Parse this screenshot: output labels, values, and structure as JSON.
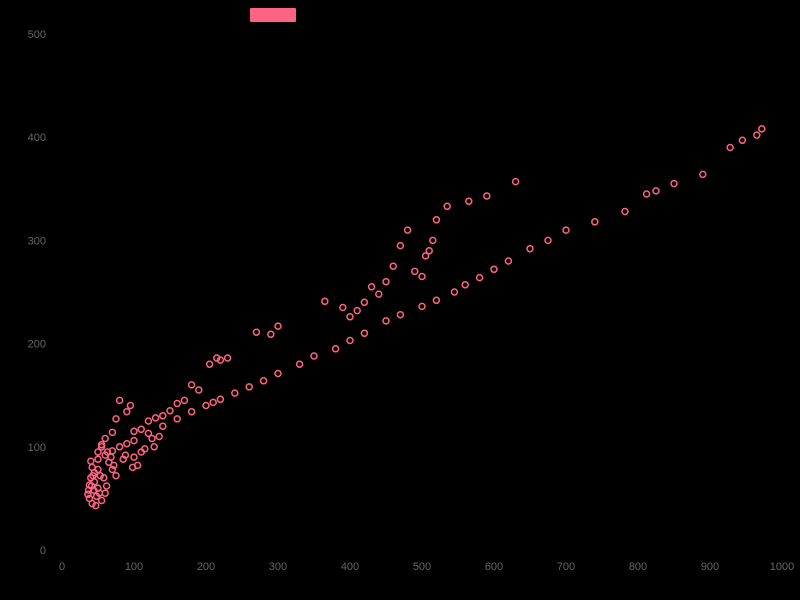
{
  "chart_data": {
    "type": "scatter",
    "title": "",
    "xlabel": "",
    "ylabel": "",
    "xlim": [
      0,
      1000
    ],
    "ylim": [
      0,
      500
    ],
    "x_ticks": [
      0,
      100,
      200,
      300,
      400,
      500,
      600,
      700,
      800,
      900,
      1000
    ],
    "y_ticks": [
      0,
      100,
      200,
      300,
      400,
      500
    ],
    "grid": false,
    "legend_position": "top-center",
    "series": [
      {
        "name": "",
        "color": "#ff6384",
        "points": [
          [
            972,
            408
          ],
          [
            965,
            402
          ],
          [
            945,
            397
          ],
          [
            928,
            390
          ],
          [
            890,
            364
          ],
          [
            850,
            355
          ],
          [
            825,
            348
          ],
          [
            812,
            345
          ],
          [
            782,
            328
          ],
          [
            740,
            318
          ],
          [
            700,
            310
          ],
          [
            675,
            300
          ],
          [
            650,
            292
          ],
          [
            620,
            280
          ],
          [
            600,
            272
          ],
          [
            580,
            264
          ],
          [
            560,
            257
          ],
          [
            545,
            250
          ],
          [
            520,
            242
          ],
          [
            500,
            236
          ],
          [
            470,
            228
          ],
          [
            450,
            222
          ],
          [
            420,
            210
          ],
          [
            400,
            203
          ],
          [
            380,
            195
          ],
          [
            350,
            188
          ],
          [
            330,
            180
          ],
          [
            300,
            171
          ],
          [
            280,
            164
          ],
          [
            260,
            158
          ],
          [
            240,
            152
          ],
          [
            220,
            146
          ],
          [
            210,
            143
          ],
          [
            200,
            140
          ],
          [
            180,
            134
          ],
          [
            160,
            127
          ],
          [
            140,
            120
          ],
          [
            120,
            113
          ],
          [
            100,
            106
          ],
          [
            90,
            103
          ],
          [
            80,
            100
          ],
          [
            70,
            96
          ],
          [
            60,
            92
          ],
          [
            50,
            88
          ],
          [
            40,
            86
          ],
          [
            630,
            357
          ],
          [
            590,
            343
          ],
          [
            565,
            338
          ],
          [
            535,
            333
          ],
          [
            520,
            320
          ],
          [
            515,
            300
          ],
          [
            510,
            290
          ],
          [
            505,
            285
          ],
          [
            500,
            265
          ],
          [
            490,
            270
          ],
          [
            480,
            310
          ],
          [
            470,
            295
          ],
          [
            460,
            275
          ],
          [
            450,
            260
          ],
          [
            440,
            248
          ],
          [
            430,
            255
          ],
          [
            420,
            240
          ],
          [
            410,
            232
          ],
          [
            400,
            226
          ],
          [
            390,
            235
          ],
          [
            365,
            241
          ],
          [
            300,
            217
          ],
          [
            290,
            209
          ],
          [
            270,
            211
          ],
          [
            230,
            186
          ],
          [
            220,
            184
          ],
          [
            215,
            186
          ],
          [
            205,
            180
          ],
          [
            190,
            155
          ],
          [
            180,
            160
          ],
          [
            170,
            145
          ],
          [
            160,
            142
          ],
          [
            150,
            135
          ],
          [
            140,
            130
          ],
          [
            130,
            128
          ],
          [
            120,
            125
          ],
          [
            110,
            117
          ],
          [
            100,
            115
          ],
          [
            95,
            140
          ],
          [
            90,
            134
          ],
          [
            80,
            145
          ],
          [
            75,
            127
          ],
          [
            70,
            114
          ],
          [
            60,
            108
          ],
          [
            55,
            100
          ],
          [
            50,
            95
          ],
          [
            45,
            75
          ],
          [
            40,
            70
          ],
          [
            38,
            63
          ],
          [
            37,
            58
          ],
          [
            36,
            54
          ],
          [
            38,
            50
          ],
          [
            42,
            45
          ],
          [
            47,
            43
          ],
          [
            55,
            48
          ],
          [
            60,
            55
          ],
          [
            62,
            62
          ],
          [
            58,
            70
          ],
          [
            50,
            78
          ],
          [
            42,
            80
          ],
          [
            45,
            66
          ],
          [
            50,
            60
          ],
          [
            52,
            55
          ],
          [
            48,
            52
          ],
          [
            44,
            58
          ],
          [
            41,
            62
          ],
          [
            43,
            72
          ],
          [
            53,
            72
          ],
          [
            65,
            85
          ],
          [
            70,
            78
          ],
          [
            75,
            72
          ],
          [
            72,
            82
          ],
          [
            68,
            90
          ],
          [
            63,
            95
          ],
          [
            55,
            102
          ],
          [
            85,
            88
          ],
          [
            88,
            92
          ],
          [
            100,
            90
          ],
          [
            110,
            95
          ],
          [
            98,
            80
          ],
          [
            105,
            82
          ],
          [
            115,
            98
          ],
          [
            125,
            108
          ],
          [
            135,
            110
          ],
          [
            128,
            100
          ]
        ]
      }
    ]
  }
}
